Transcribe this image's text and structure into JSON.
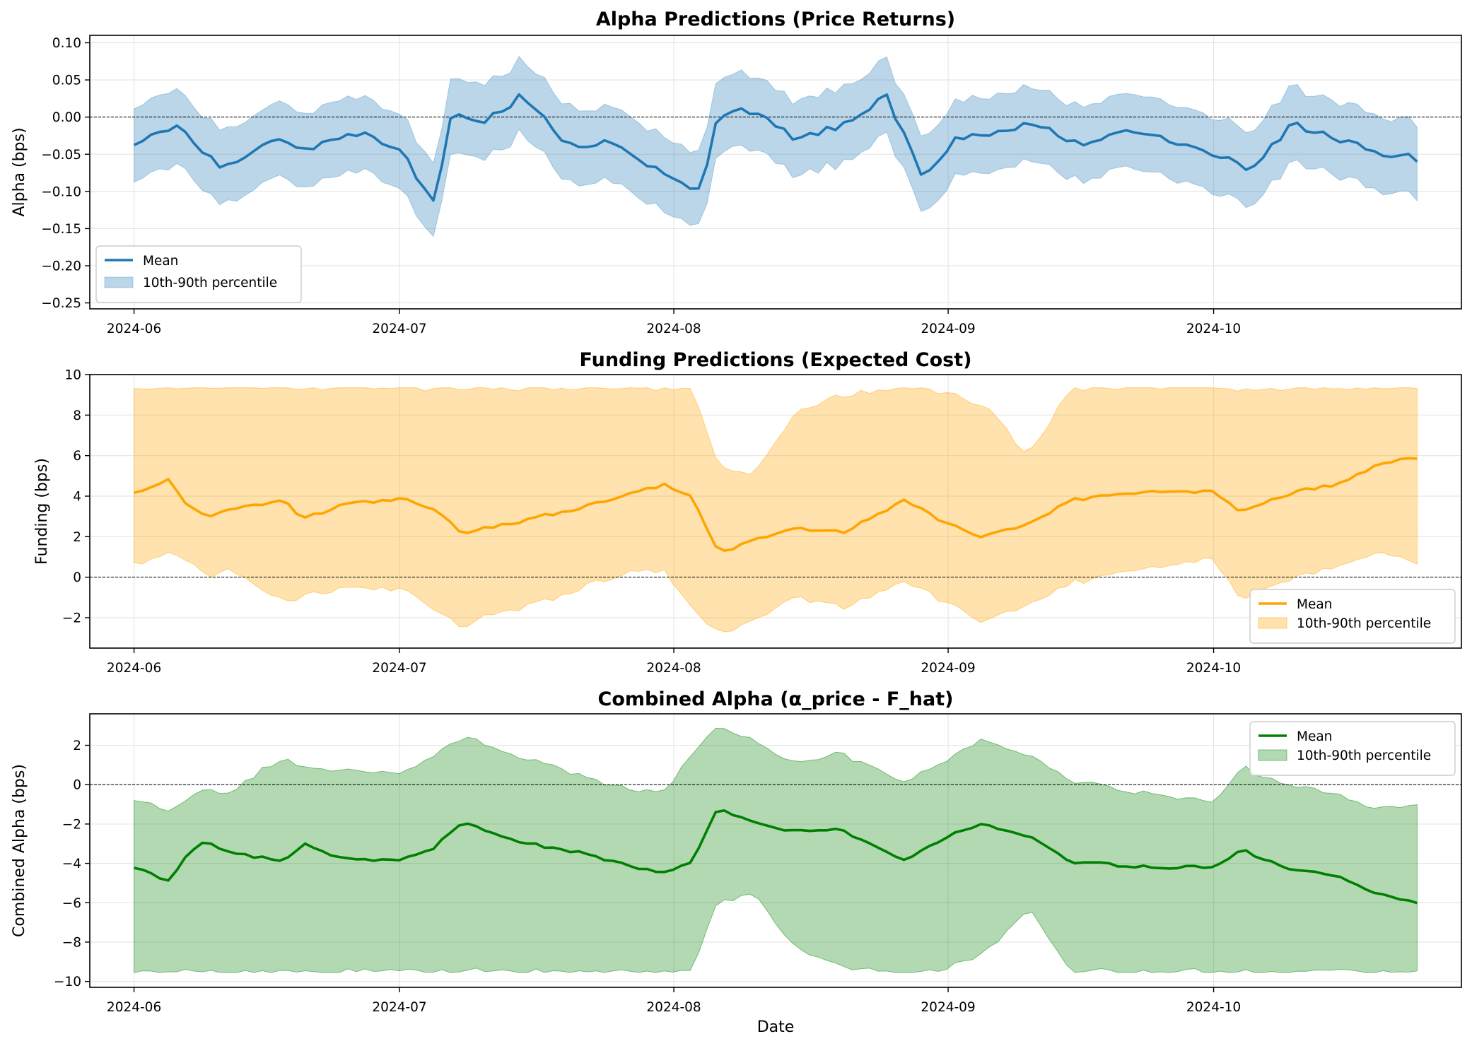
{
  "figure": {
    "xlabel": "Date"
  },
  "chart_data": [
    {
      "type": "area",
      "title": "Alpha Predictions (Price Returns)",
      "ylabel": "Alpha (bps)",
      "xlabel": "",
      "x_range": [
        "2024-06-01",
        "2024-10-24"
      ],
      "xlim": [
        "2024-05-27",
        "2024-10-29"
      ],
      "ylim": [
        -0.258,
        0.11
      ],
      "yticks": [
        0.1,
        0.05,
        0.0,
        -0.05,
        -0.1,
        -0.15,
        -0.2,
        -0.25
      ],
      "ytick_labels": [
        "0.10",
        "0.05",
        "0.00",
        "−0.05",
        "−0.10",
        "−0.15",
        "−0.20",
        "−0.25"
      ],
      "xticks": [
        "2024-06-01",
        "2024-07-01",
        "2024-08-01",
        "2024-09-01",
        "2024-10-01"
      ],
      "xtick_labels": [
        "2024-06",
        "2024-07",
        "2024-08",
        "2024-09",
        "2024-10"
      ],
      "zero_line": true,
      "grid": true,
      "legend": {
        "placement": "lower-left",
        "entries": [
          "Mean",
          "10th-90th percentile"
        ]
      },
      "colors": {
        "line": "#1f77b4",
        "band": "#1f77b4"
      },
      "series": [
        {
          "name": "Mean",
          "x": [
            "2024-06-01",
            "2024-06-06",
            "2024-06-11",
            "2024-06-16",
            "2024-06-21",
            "2024-06-26",
            "2024-07-01",
            "2024-07-05",
            "2024-07-07",
            "2024-07-10",
            "2024-07-15",
            "2024-07-20",
            "2024-07-25",
            "2024-07-30",
            "2024-08-04",
            "2024-08-06",
            "2024-08-10",
            "2024-08-15",
            "2024-08-20",
            "2024-08-25",
            "2024-08-29",
            "2024-09-02",
            "2024-09-06",
            "2024-09-11",
            "2024-09-16",
            "2024-09-21",
            "2024-09-26",
            "2024-10-01",
            "2024-10-05",
            "2024-10-10",
            "2024-10-15",
            "2024-10-20",
            "2024-10-24"
          ],
          "values": [
            -0.035,
            -0.01,
            -0.07,
            -0.03,
            -0.04,
            -0.02,
            -0.04,
            -0.12,
            0.01,
            -0.01,
            0.03,
            -0.04,
            -0.03,
            -0.07,
            -0.1,
            0.0,
            0.01,
            -0.03,
            -0.01,
            0.03,
            -0.08,
            -0.03,
            -0.02,
            -0.01,
            -0.04,
            -0.02,
            -0.03,
            -0.05,
            -0.07,
            -0.01,
            -0.03,
            -0.05,
            -0.055
          ]
        },
        {
          "name": "10th-90th percentile",
          "x": [
            "2024-06-01",
            "2024-06-06",
            "2024-06-11",
            "2024-06-16",
            "2024-06-21",
            "2024-06-26",
            "2024-07-01",
            "2024-07-05",
            "2024-07-07",
            "2024-07-10",
            "2024-07-15",
            "2024-07-20",
            "2024-07-25",
            "2024-07-30",
            "2024-08-04",
            "2024-08-06",
            "2024-08-10",
            "2024-08-15",
            "2024-08-20",
            "2024-08-25",
            "2024-08-29",
            "2024-09-02",
            "2024-09-06",
            "2024-09-11",
            "2024-09-16",
            "2024-09-21",
            "2024-09-26",
            "2024-10-01",
            "2024-10-05",
            "2024-10-10",
            "2024-10-15",
            "2024-10-20",
            "2024-10-24"
          ],
          "lower": [
            -0.085,
            -0.06,
            -0.12,
            -0.08,
            -0.09,
            -0.07,
            -0.09,
            -0.17,
            -0.04,
            -0.06,
            -0.02,
            -0.09,
            -0.08,
            -0.12,
            -0.15,
            -0.05,
            -0.04,
            -0.08,
            -0.06,
            -0.02,
            -0.13,
            -0.08,
            -0.07,
            -0.06,
            -0.09,
            -0.07,
            -0.08,
            -0.1,
            -0.12,
            -0.06,
            -0.08,
            -0.1,
            -0.105
          ],
          "upper": [
            0.015,
            0.04,
            -0.02,
            0.02,
            0.01,
            0.03,
            0.01,
            -0.07,
            0.06,
            0.04,
            0.08,
            0.01,
            0.02,
            -0.02,
            -0.05,
            0.05,
            0.06,
            0.02,
            0.04,
            0.08,
            -0.03,
            0.02,
            0.03,
            0.04,
            0.01,
            0.03,
            0.02,
            0.0,
            -0.02,
            0.04,
            0.02,
            0.0,
            -0.005
          ]
        }
      ]
    },
    {
      "type": "area",
      "title": "Funding Predictions (Expected Cost)",
      "ylabel": "Funding (bps)",
      "xlabel": "",
      "x_range": [
        "2024-06-01",
        "2024-10-24"
      ],
      "xlim": [
        "2024-05-27",
        "2024-10-29"
      ],
      "ylim": [
        -3.5,
        10
      ],
      "yticks": [
        10,
        8,
        6,
        4,
        2,
        0,
        -2
      ],
      "ytick_labels": [
        "10",
        "8",
        "6",
        "4",
        "2",
        "0",
        "−2"
      ],
      "xticks": [
        "2024-06-01",
        "2024-07-01",
        "2024-08-01",
        "2024-09-01",
        "2024-10-01"
      ],
      "xtick_labels": [
        "2024-06",
        "2024-07",
        "2024-08",
        "2024-09",
        "2024-10"
      ],
      "zero_line": true,
      "grid": true,
      "legend": {
        "placement": "lower-right",
        "entries": [
          "Mean",
          "10th-90th percentile"
        ]
      },
      "colors": {
        "line": "#ffa500",
        "band": "#ffa500"
      },
      "series": [
        {
          "name": "Mean",
          "x": [
            "2024-06-01",
            "2024-06-05",
            "2024-06-07",
            "2024-06-09",
            "2024-06-12",
            "2024-06-15",
            "2024-06-18",
            "2024-06-20",
            "2024-06-25",
            "2024-07-01",
            "2024-07-05",
            "2024-07-08",
            "2024-07-12",
            "2024-07-17",
            "2024-07-22",
            "2024-07-27",
            "2024-07-31",
            "2024-08-03",
            "2024-08-06",
            "2024-08-10",
            "2024-08-15",
            "2024-08-20",
            "2024-08-27",
            "2024-09-01",
            "2024-09-05",
            "2024-09-10",
            "2024-09-15",
            "2024-09-20",
            "2024-09-25",
            "2024-10-01",
            "2024-10-04",
            "2024-10-10",
            "2024-10-15",
            "2024-10-20",
            "2024-10-24"
          ],
          "values": [
            4.2,
            4.8,
            3.5,
            3.0,
            3.3,
            3.6,
            3.8,
            2.9,
            3.6,
            3.9,
            3.4,
            2.2,
            2.5,
            3.0,
            3.5,
            4.1,
            4.6,
            4.0,
            1.2,
            1.8,
            2.4,
            2.2,
            3.8,
            2.6,
            2.0,
            2.6,
            3.8,
            4.1,
            4.2,
            4.2,
            3.3,
            4.2,
            4.6,
            5.6,
            5.9
          ]
        },
        {
          "name": "10th-90th percentile",
          "x": [
            "2024-06-01",
            "2024-06-05",
            "2024-06-07",
            "2024-06-09",
            "2024-06-12",
            "2024-06-15",
            "2024-06-18",
            "2024-06-20",
            "2024-06-25",
            "2024-07-01",
            "2024-07-05",
            "2024-07-08",
            "2024-07-12",
            "2024-07-17",
            "2024-07-22",
            "2024-07-27",
            "2024-07-31",
            "2024-08-03",
            "2024-08-06",
            "2024-08-10",
            "2024-08-15",
            "2024-08-20",
            "2024-08-27",
            "2024-09-01",
            "2024-09-05",
            "2024-09-10",
            "2024-09-15",
            "2024-09-20",
            "2024-09-25",
            "2024-10-01",
            "2024-10-04",
            "2024-10-10",
            "2024-10-15",
            "2024-10-20",
            "2024-10-24"
          ],
          "lower": [
            0.7,
            1.2,
            0.8,
            0.1,
            0.3,
            -0.5,
            -1.2,
            -0.9,
            -0.6,
            -0.5,
            -1.5,
            -2.4,
            -1.8,
            -1.2,
            -0.4,
            0.2,
            0.4,
            -1.5,
            -2.8,
            -2.2,
            -1.0,
            -1.5,
            -0.2,
            -1.3,
            -2.2,
            -1.4,
            -0.3,
            0.2,
            0.5,
            0.9,
            -1.0,
            0.0,
            0.6,
            1.2,
            0.7
          ],
          "upper": [
            9.35,
            9.35,
            9.35,
            9.35,
            9.35,
            9.35,
            9.35,
            9.35,
            9.35,
            9.35,
            9.35,
            9.35,
            9.35,
            9.35,
            9.35,
            9.35,
            9.35,
            9.35,
            5.5,
            5.0,
            8.2,
            9.0,
            9.35,
            9.1,
            8.5,
            6.0,
            9.35,
            9.35,
            9.35,
            9.35,
            9.35,
            9.35,
            9.35,
            9.35,
            9.35
          ]
        }
      ]
    },
    {
      "type": "area",
      "title": "Combined Alpha (α_price - F_hat)",
      "ylabel": "Combined Alpha (bps)",
      "xlabel": "Date",
      "x_range": [
        "2024-06-01",
        "2024-10-24"
      ],
      "xlim": [
        "2024-05-27",
        "2024-10-29"
      ],
      "ylim": [
        -10.3,
        3.6
      ],
      "yticks": [
        2,
        0,
        -2,
        -4,
        -6,
        -8,
        -10
      ],
      "ytick_labels": [
        "2",
        "0",
        "−2",
        "−4",
        "−6",
        "−8",
        "−10"
      ],
      "xticks": [
        "2024-06-01",
        "2024-07-01",
        "2024-08-01",
        "2024-09-01",
        "2024-10-01"
      ],
      "xtick_labels": [
        "2024-06",
        "2024-07",
        "2024-08",
        "2024-09",
        "2024-10"
      ],
      "zero_line": true,
      "grid": true,
      "legend": {
        "placement": "top-right",
        "entries": [
          "Mean",
          "10th-90th percentile"
        ]
      },
      "colors": {
        "line": "#008000",
        "band": "#008000"
      },
      "series": [
        {
          "name": "Mean",
          "x": [
            "2024-06-01",
            "2024-06-05",
            "2024-06-07",
            "2024-06-09",
            "2024-06-12",
            "2024-06-15",
            "2024-06-18",
            "2024-06-20",
            "2024-06-25",
            "2024-07-01",
            "2024-07-05",
            "2024-07-08",
            "2024-07-12",
            "2024-07-17",
            "2024-07-22",
            "2024-07-27",
            "2024-07-31",
            "2024-08-03",
            "2024-08-06",
            "2024-08-10",
            "2024-08-15",
            "2024-08-20",
            "2024-08-27",
            "2024-09-01",
            "2024-09-05",
            "2024-09-10",
            "2024-09-15",
            "2024-09-20",
            "2024-09-25",
            "2024-10-01",
            "2024-10-04",
            "2024-10-10",
            "2024-10-15",
            "2024-10-20",
            "2024-10-24"
          ],
          "values": [
            -4.2,
            -4.9,
            -3.6,
            -2.9,
            -3.4,
            -3.7,
            -3.9,
            -3.0,
            -3.8,
            -3.9,
            -3.2,
            -1.9,
            -2.6,
            -3.1,
            -3.5,
            -4.1,
            -4.5,
            -4.0,
            -1.2,
            -1.9,
            -2.4,
            -2.3,
            -3.8,
            -2.6,
            -2.0,
            -2.6,
            -3.9,
            -4.1,
            -4.2,
            -4.2,
            -3.3,
            -4.3,
            -4.7,
            -5.6,
            -6.0
          ]
        },
        {
          "name": "10th-90th percentile",
          "x": [
            "2024-06-01",
            "2024-06-05",
            "2024-06-07",
            "2024-06-09",
            "2024-06-12",
            "2024-06-15",
            "2024-06-18",
            "2024-06-20",
            "2024-06-25",
            "2024-07-01",
            "2024-07-05",
            "2024-07-08",
            "2024-07-12",
            "2024-07-17",
            "2024-07-22",
            "2024-07-27",
            "2024-07-31",
            "2024-08-03",
            "2024-08-06",
            "2024-08-10",
            "2024-08-15",
            "2024-08-20",
            "2024-08-27",
            "2024-09-01",
            "2024-09-05",
            "2024-09-10",
            "2024-09-15",
            "2024-09-20",
            "2024-09-25",
            "2024-10-01",
            "2024-10-04",
            "2024-10-10",
            "2024-10-15",
            "2024-10-20",
            "2024-10-24"
          ],
          "lower": [
            -9.5,
            -9.5,
            -9.5,
            -9.5,
            -9.5,
            -9.5,
            -9.5,
            -9.5,
            -9.5,
            -9.5,
            -9.5,
            -9.5,
            -9.5,
            -9.5,
            -9.5,
            -9.5,
            -9.5,
            -9.5,
            -6.0,
            -5.5,
            -8.5,
            -9.2,
            -9.5,
            -9.3,
            -8.6,
            -6.3,
            -9.5,
            -9.5,
            -9.5,
            -9.5,
            -9.5,
            -9.5,
            -9.5,
            -9.5,
            -9.5
          ],
          "upper": [
            -0.8,
            -1.3,
            -0.9,
            -0.2,
            -0.4,
            0.6,
            1.3,
            0.9,
            0.7,
            0.5,
            1.5,
            2.4,
            1.8,
            1.2,
            0.4,
            -0.2,
            -0.4,
            1.5,
            2.9,
            2.3,
            1.0,
            1.6,
            0.2,
            1.3,
            2.3,
            1.5,
            0.2,
            -0.2,
            -0.5,
            -0.9,
            0.9,
            0.0,
            -0.6,
            -1.2,
            -1.0
          ]
        }
      ]
    }
  ]
}
